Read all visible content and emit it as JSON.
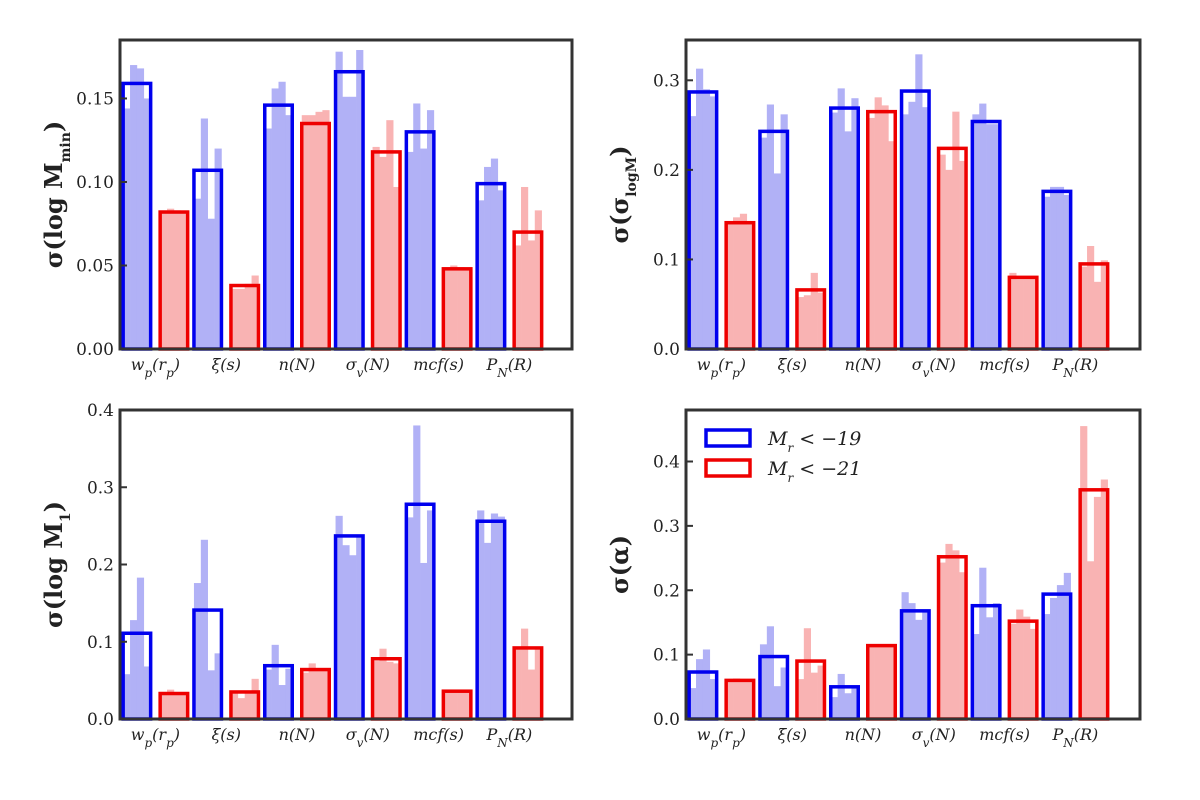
{
  "chart_data": [
    {
      "type": "bar",
      "ylabel": "σ(log M_min)",
      "ylim": [
        0,
        0.185
      ],
      "yticks": [
        0.0,
        0.05,
        0.1,
        0.15
      ],
      "ytick_labels": [
        "0.00",
        "0.05",
        "0.10",
        "0.15"
      ],
      "categories": [
        "w_p(r_p)",
        "ξ(s)",
        "n(N)",
        "σ_v(N)",
        "mcf(s)",
        "P_N(R)"
      ],
      "series": [
        {
          "name": "M_r < −19",
          "color": "#0000ee",
          "values": [
            0.159,
            0.107,
            0.146,
            0.166,
            0.13,
            0.099
          ],
          "sub": [
            [
              0.144,
              0.17,
              0.168,
              0.15
            ],
            [
              0.09,
              0.138,
              0.078,
              0.12
            ],
            [
              0.132,
              0.156,
              0.16,
              0.14
            ],
            [
              0.178,
              0.151,
              0.151,
              0.179
            ],
            [
              0.118,
              0.147,
              0.12,
              0.143
            ],
            [
              0.089,
              0.109,
              0.114,
              0.095
            ]
          ]
        },
        {
          "name": "M_r < −21",
          "color": "#ee0000",
          "values": [
            0.082,
            0.038,
            0.135,
            0.118,
            0.048,
            0.07
          ],
          "sub": [
            [
              0.083,
              0.084,
              0.083,
              0.082
            ],
            [
              0.036,
              0.036,
              0.039,
              0.044
            ],
            [
              0.14,
              0.14,
              0.142,
              0.143
            ],
            [
              0.121,
              0.115,
              0.137,
              0.097
            ],
            [
              0.049,
              0.05,
              0.049,
              0.048
            ],
            [
              0.062,
              0.097,
              0.065,
              0.083
            ]
          ]
        }
      ]
    },
    {
      "type": "bar",
      "ylabel": "σ(σ_logM)",
      "ylim": [
        0,
        0.345
      ],
      "yticks": [
        0.0,
        0.1,
        0.2,
        0.3
      ],
      "ytick_labels": [
        "0.0",
        "0.1",
        "0.2",
        "0.3"
      ],
      "categories": [
        "w_p(r_p)",
        "ξ(s)",
        "n(N)",
        "σ_v(N)",
        "mcf(s)",
        "P_N(R)"
      ],
      "series": [
        {
          "name": "M_r < −19",
          "color": "#0000ee",
          "values": [
            0.287,
            0.243,
            0.269,
            0.288,
            0.254,
            0.176
          ],
          "sub": [
            [
              0.26,
              0.313,
              0.29,
              0.282
            ],
            [
              0.236,
              0.273,
              0.196,
              0.262
            ],
            [
              0.264,
              0.291,
              0.243,
              0.28
            ],
            [
              0.262,
              0.276,
              0.329,
              0.27
            ],
            [
              0.262,
              0.274,
              0.251,
              0.251
            ],
            [
              0.17,
              0.181,
              0.181,
              0.172
            ]
          ]
        },
        {
          "name": "M_r < −21",
          "color": "#ee0000",
          "values": [
            0.141,
            0.066,
            0.265,
            0.224,
            0.08,
            0.095
          ],
          "sub": [
            [
              0.141,
              0.147,
              0.151,
              0.139
            ],
            [
              0.058,
              0.06,
              0.085,
              0.063
            ],
            [
              0.258,
              0.281,
              0.272,
              0.232
            ],
            [
              0.217,
              0.2,
              0.265,
              0.21
            ],
            [
              0.085,
              0.078,
              0.078,
              0.081
            ],
            [
              0.092,
              0.115,
              0.075,
              0.099
            ]
          ]
        }
      ]
    },
    {
      "type": "bar",
      "ylabel": "σ(log M_1)",
      "ylim": [
        0,
        0.4
      ],
      "yticks": [
        0.0,
        0.1,
        0.2,
        0.3,
        0.4
      ],
      "ytick_labels": [
        "0.0",
        "0.1",
        "0.2",
        "0.3",
        "0.4"
      ],
      "categories": [
        "w_p(r_p)",
        "ξ(s)",
        "n(N)",
        "σ_v(N)",
        "mcf(s)",
        "P_N(R)"
      ],
      "series": [
        {
          "name": "M_r < −19",
          "color": "#0000ee",
          "values": [
            0.111,
            0.141,
            0.069,
            0.237,
            0.278,
            0.256
          ],
          "sub": [
            [
              0.058,
              0.128,
              0.183,
              0.068
            ],
            [
              0.176,
              0.232,
              0.063,
              0.085
            ],
            [
              0.064,
              0.096,
              0.044,
              0.065
            ],
            [
              0.263,
              0.225,
              0.212,
              0.238
            ],
            [
              0.261,
              0.38,
              0.202,
              0.27
            ],
            [
              0.27,
              0.228,
              0.266,
              0.262
            ]
          ]
        },
        {
          "name": "M_r < −21",
          "color": "#ee0000",
          "values": [
            0.033,
            0.035,
            0.064,
            0.078,
            0.036,
            0.092
          ],
          "sub": [
            [
              0.035,
              0.038,
              0.033,
              0.034
            ],
            [
              0.033,
              0.027,
              0.035,
              0.052
            ],
            [
              0.06,
              0.072,
              0.064,
              0.066
            ],
            [
              0.075,
              0.091,
              0.074,
              0.072
            ],
            [
              0.037,
              0.037,
              0.037,
              0.036
            ],
            [
              0.091,
              0.117,
              0.064,
              0.093
            ]
          ]
        }
      ]
    },
    {
      "type": "bar",
      "ylabel": "σ(α)",
      "ylim": [
        0,
        0.48
      ],
      "yticks": [
        0.0,
        0.1,
        0.2,
        0.3,
        0.4
      ],
      "ytick_labels": [
        "0.0",
        "0.1",
        "0.2",
        "0.3",
        "0.4"
      ],
      "categories": [
        "w_p(r_p)",
        "ξ(s)",
        "n(N)",
        "σ_v(N)",
        "mcf(s)",
        "P_N(R)"
      ],
      "legend": {
        "location": "top-left",
        "entries": [
          "M_r < −19",
          "M_r < −21"
        ]
      },
      "series": [
        {
          "name": "M_r < −19",
          "color": "#0000ee",
          "values": [
            0.073,
            0.097,
            0.05,
            0.168,
            0.176,
            0.194
          ],
          "sub": [
            [
              0.048,
              0.093,
              0.108,
              0.062
            ],
            [
              0.116,
              0.144,
              0.051,
              0.08
            ],
            [
              0.034,
              0.07,
              0.04,
              0.05
            ],
            [
              0.197,
              0.18,
              0.154,
              0.17
            ],
            [
              0.132,
              0.235,
              0.158,
              0.18
            ],
            [
              0.163,
              0.188,
              0.208,
              0.227
            ]
          ]
        },
        {
          "name": "M_r < −21",
          "color": "#ee0000",
          "values": [
            0.06,
            0.09,
            0.114,
            0.252,
            0.152,
            0.356
          ],
          "sub": [
            [
              0.062,
              0.063,
              0.061,
              0.06
            ],
            [
              0.062,
              0.141,
              0.072,
              0.083
            ],
            [
              0.112,
              0.116,
              0.114,
              0.116
            ],
            [
              0.243,
              0.272,
              0.262,
              0.228
            ],
            [
              0.148,
              0.17,
              0.159,
              0.14
            ],
            [
              0.455,
              0.245,
              0.345,
              0.372
            ]
          ]
        }
      ]
    }
  ]
}
